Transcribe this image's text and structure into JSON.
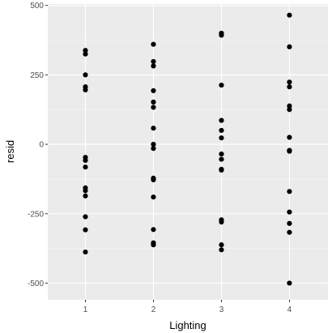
{
  "chart_data": {
    "type": "scatter",
    "title": "",
    "xlabel": "Lighting",
    "ylabel": "resid",
    "x_categories": [
      "1",
      "2",
      "3",
      "4"
    ],
    "ylim": [
      -560,
      505
    ],
    "y_ticks": [
      500,
      250,
      0,
      -250,
      -500
    ],
    "y_tick_labels": [
      "500",
      "250",
      "0",
      "-250",
      "-500"
    ],
    "grid": true,
    "colors": {
      "panel": "#ebebeb",
      "grid_major": "#ffffff",
      "grid_minor": "#f5f5f5",
      "point": "#000000",
      "tick": "#333333"
    },
    "points": [
      {
        "x": 1,
        "y": 338
      },
      {
        "x": 1,
        "y": 325
      },
      {
        "x": 1,
        "y": 250
      },
      {
        "x": 1,
        "y": 207
      },
      {
        "x": 1,
        "y": 196
      },
      {
        "x": 1,
        "y": -47
      },
      {
        "x": 1,
        "y": -58
      },
      {
        "x": 1,
        "y": -82
      },
      {
        "x": 1,
        "y": -157
      },
      {
        "x": 1,
        "y": -167
      },
      {
        "x": 1,
        "y": -186
      },
      {
        "x": 1,
        "y": -261
      },
      {
        "x": 1,
        "y": -308
      },
      {
        "x": 1,
        "y": -388
      },
      {
        "x": 2,
        "y": 360
      },
      {
        "x": 2,
        "y": 298
      },
      {
        "x": 2,
        "y": 282
      },
      {
        "x": 2,
        "y": 193
      },
      {
        "x": 2,
        "y": 152
      },
      {
        "x": 2,
        "y": 133
      },
      {
        "x": 2,
        "y": 58
      },
      {
        "x": 2,
        "y": 0
      },
      {
        "x": 2,
        "y": -15
      },
      {
        "x": 2,
        "y": -122
      },
      {
        "x": 2,
        "y": -128
      },
      {
        "x": 2,
        "y": -190
      },
      {
        "x": 2,
        "y": -307
      },
      {
        "x": 2,
        "y": -355
      },
      {
        "x": 2,
        "y": -362
      },
      {
        "x": 3,
        "y": 400
      },
      {
        "x": 3,
        "y": 393
      },
      {
        "x": 3,
        "y": 213
      },
      {
        "x": 3,
        "y": 86
      },
      {
        "x": 3,
        "y": 50
      },
      {
        "x": 3,
        "y": 23
      },
      {
        "x": 3,
        "y": -35
      },
      {
        "x": 3,
        "y": -54
      },
      {
        "x": 3,
        "y": -90
      },
      {
        "x": 3,
        "y": -93
      },
      {
        "x": 3,
        "y": -272
      },
      {
        "x": 3,
        "y": -280
      },
      {
        "x": 3,
        "y": -362
      },
      {
        "x": 3,
        "y": -380
      },
      {
        "x": 4,
        "y": 465
      },
      {
        "x": 4,
        "y": 351
      },
      {
        "x": 4,
        "y": 224
      },
      {
        "x": 4,
        "y": 207
      },
      {
        "x": 4,
        "y": 138
      },
      {
        "x": 4,
        "y": 125
      },
      {
        "x": 4,
        "y": 25
      },
      {
        "x": 4,
        "y": -22
      },
      {
        "x": 4,
        "y": -25
      },
      {
        "x": 4,
        "y": -170
      },
      {
        "x": 4,
        "y": -244
      },
      {
        "x": 4,
        "y": -285
      },
      {
        "x": 4,
        "y": -317
      },
      {
        "x": 4,
        "y": -500
      }
    ]
  }
}
